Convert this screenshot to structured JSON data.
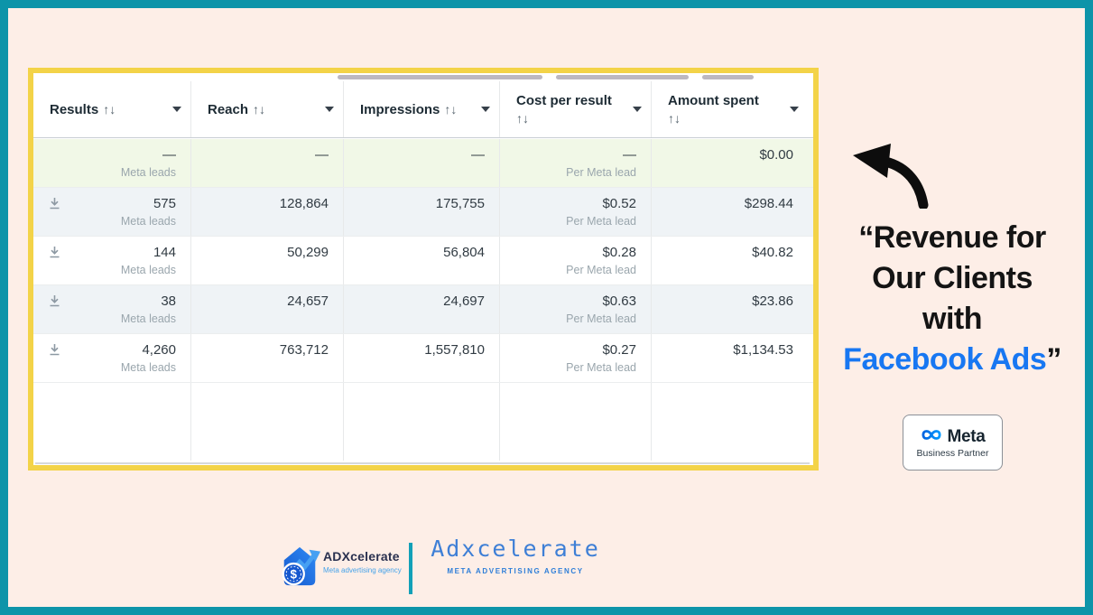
{
  "colors": {
    "frame_teal": "#0d94a9",
    "background_pink": "#fdeee7",
    "card_border_yellow": "#f3d348",
    "row_highlight_green": "#f1f8e7",
    "row_highlight_gray": "#eff3f6",
    "quote_accent_blue": "#1877f2",
    "meta_brand_blue": "#0082fb",
    "footer_divider_teal": "#12a0b8"
  },
  "table": {
    "sort_glyph": "↑↓",
    "columns": [
      {
        "id": "results",
        "label": "Results"
      },
      {
        "id": "reach",
        "label": "Reach"
      },
      {
        "id": "impressions",
        "label": "Impressions"
      },
      {
        "id": "cost_per_result",
        "label": "Cost per result"
      },
      {
        "id": "amount_spent",
        "label": "Amount spent"
      }
    ],
    "rows": [
      {
        "results": "—",
        "results_sub": "Meta leads",
        "reach": "—",
        "impressions": "—",
        "cost": "—",
        "cost_sub": "Per Meta lead",
        "spent": "$0.00",
        "download": false,
        "bg": "green"
      },
      {
        "results": "575",
        "results_sub": "Meta leads",
        "reach": "128,864",
        "impressions": "175,755",
        "cost": "$0.52",
        "cost_sub": "Per Meta lead",
        "spent": "$298.44",
        "download": true,
        "bg": "gray"
      },
      {
        "results": "144",
        "results_sub": "Meta leads",
        "reach": "50,299",
        "impressions": "56,804",
        "cost": "$0.28",
        "cost_sub": "Per Meta lead",
        "spent": "$40.82",
        "download": true,
        "bg": "white"
      },
      {
        "results": "38",
        "results_sub": "Meta leads",
        "reach": "24,657",
        "impressions": "24,697",
        "cost": "$0.63",
        "cost_sub": "Per Meta lead",
        "spent": "$23.86",
        "download": true,
        "bg": "gray"
      },
      {
        "results": "4,260",
        "results_sub": "Meta leads",
        "reach": "763,712",
        "impressions": "1,557,810",
        "cost": "$0.27",
        "cost_sub": "Per Meta lead",
        "spent": "$1,134.53",
        "download": true,
        "bg": "white"
      }
    ]
  },
  "quote": {
    "line1": "“Revenue for",
    "line2": "Our Clients",
    "line3": "with",
    "line4": "Facebook Ads",
    "close_quote": "”"
  },
  "badge": {
    "brand": "Meta",
    "subtitle": "Business Partner"
  },
  "footer": {
    "left_logo": {
      "name": "ADXcelerate",
      "tagline": "Meta advertising agency",
      "coin_symbol": "$"
    },
    "right_logo": {
      "name": "Adxcelerate",
      "tagline": "META ADVERTISING AGENCY"
    }
  }
}
